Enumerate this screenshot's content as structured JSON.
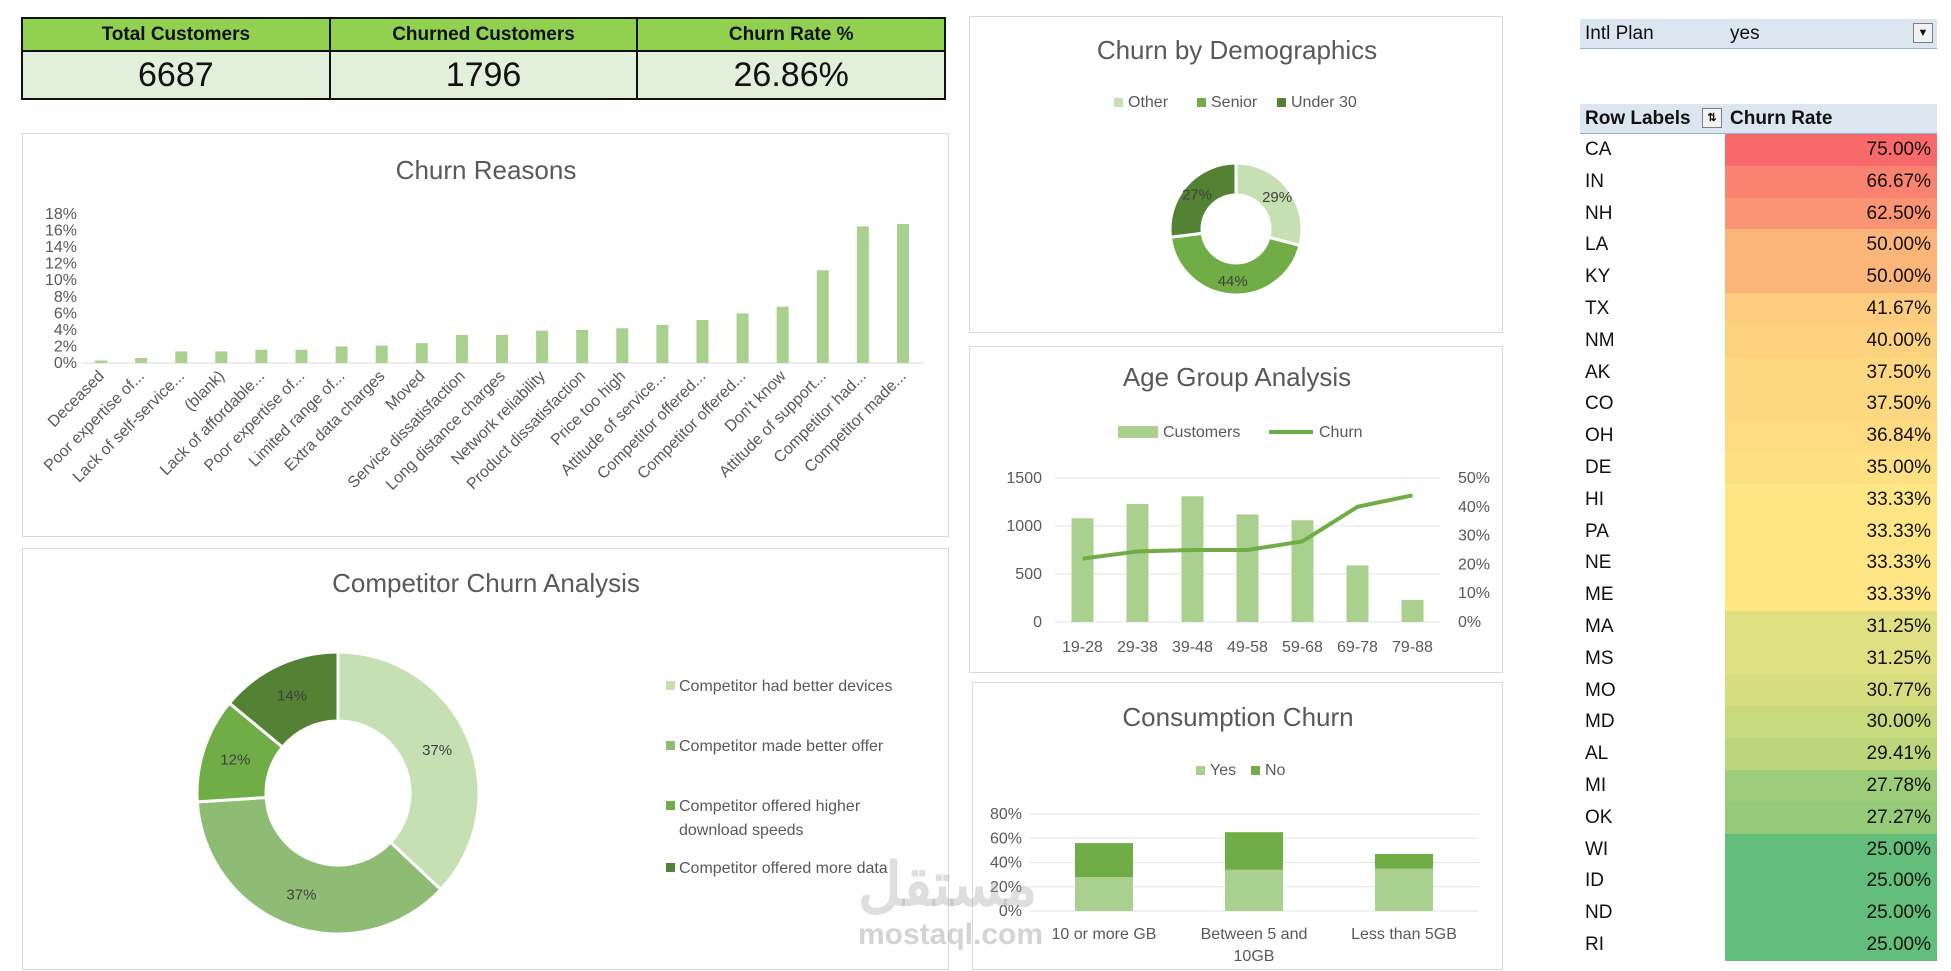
{
  "kpis": [
    {
      "label": "Total Customers",
      "value": "6687"
    },
    {
      "label": "Churned Customers",
      "value": "1796"
    },
    {
      "label": "Churn Rate %",
      "value": "26.86%"
    }
  ],
  "colors": {
    "light_green": "#a9d08e",
    "green": "#70ad47",
    "dark_green": "#548235",
    "pale_green": "#c6e0b4",
    "kpi_head": "#92d050",
    "kpi_body": "#e2efda"
  },
  "chart_data": [
    {
      "type": "bar",
      "title": "Churn Reasons",
      "categories": [
        "Deceased",
        "Poor expertise of...",
        "Lack of self-service...",
        "(blank)",
        "Lack of affordable...",
        "Poor expertise of...",
        "Limited range of...",
        "Extra data charges",
        "Moved",
        "Service dissatisfaction",
        "Long distance charges",
        "Network reliability",
        "Product dissatisfaction",
        "Price too high",
        "Attitude of service...",
        "Competitor offered...",
        "Competitor offered...",
        "Don't know",
        "Attitude of support...",
        "Competitor had...",
        "Competitor made..."
      ],
      "values": [
        0.3,
        0.6,
        1.4,
        1.4,
        1.6,
        1.6,
        2.0,
        2.1,
        2.4,
        3.4,
        3.4,
        3.9,
        4.0,
        4.2,
        4.6,
        5.2,
        6.0,
        6.8,
        11.2,
        16.5,
        16.8
      ],
      "y_ticks": [
        "0%",
        "2%",
        "4%",
        "6%",
        "8%",
        "10%",
        "12%",
        "14%",
        "16%",
        "18%"
      ],
      "ylim": [
        0,
        18
      ]
    },
    {
      "type": "pie",
      "title": "Competitor Churn Analysis",
      "labels": [
        "Competitor had better devices",
        "Competitor made better offer",
        "Competitor offered higher download speeds",
        "Competitor offered more data"
      ],
      "values": [
        37,
        37,
        12,
        14
      ],
      "data_labels": [
        "37%",
        "37%",
        "12%",
        "14%"
      ]
    },
    {
      "type": "pie",
      "title": "Churn by Demographics",
      "labels": [
        "Other",
        "Senior",
        "Under 30"
      ],
      "values": [
        29,
        44,
        27
      ],
      "data_labels": [
        "29%",
        "44%",
        "27%"
      ]
    },
    {
      "type": "bar",
      "title": "Age Group Analysis",
      "categories": [
        "19-28",
        "29-38",
        "39-48",
        "49-58",
        "59-68",
        "69-78",
        "79-88"
      ],
      "series": [
        {
          "name": "Customers",
          "type": "bar",
          "axis": "left",
          "values": [
            1080,
            1230,
            1310,
            1120,
            1060,
            590,
            230
          ]
        },
        {
          "name": "Churn",
          "type": "line",
          "axis": "right",
          "values": [
            22,
            24.5,
            25,
            25,
            28,
            40,
            44
          ]
        }
      ],
      "y_ticks": [
        "0",
        "500",
        "1000",
        "1500"
      ],
      "y2_ticks": [
        "0%",
        "10%",
        "20%",
        "30%",
        "40%",
        "50%"
      ],
      "ylim": [
        0,
        1500
      ],
      "y2lim": [
        0,
        50
      ]
    },
    {
      "type": "bar",
      "title": "Consumption Churn",
      "categories": [
        "10 or more GB",
        "Between 5 and 10GB",
        "Less than 5GB"
      ],
      "series": [
        {
          "name": "Yes",
          "values": [
            28,
            34,
            35
          ]
        },
        {
          "name": "No",
          "values": [
            28,
            31,
            12
          ]
        }
      ],
      "y_ticks": [
        "0%",
        "20%",
        "40%",
        "60%",
        "80%"
      ],
      "ylim": [
        0,
        80
      ]
    }
  ],
  "pivot": {
    "filter_label": "Intl Plan",
    "filter_value": "yes",
    "row_header": "Row Labels",
    "value_header": "Churn Rate",
    "rows": [
      {
        "state": "CA",
        "rate": "75.00%",
        "color": "#f8696b"
      },
      {
        "state": "IN",
        "rate": "66.67%",
        "color": "#f98370"
      },
      {
        "state": "NH",
        "rate": "62.50%",
        "color": "#fa9473"
      },
      {
        "state": "LA",
        "rate": "50.00%",
        "color": "#fcb579"
      },
      {
        "state": "KY",
        "rate": "50.00%",
        "color": "#fcb579"
      },
      {
        "state": "TX",
        "rate": "41.67%",
        "color": "#fdcc7e"
      },
      {
        "state": "NM",
        "rate": "40.00%",
        "color": "#fed17f"
      },
      {
        "state": "AK",
        "rate": "37.50%",
        "color": "#fed880"
      },
      {
        "state": "CO",
        "rate": "37.50%",
        "color": "#fed880"
      },
      {
        "state": "OH",
        "rate": "36.84%",
        "color": "#feda81"
      },
      {
        "state": "DE",
        "rate": "35.00%",
        "color": "#fee082"
      },
      {
        "state": "HI",
        "rate": "33.33%",
        "color": "#ffe583"
      },
      {
        "state": "PA",
        "rate": "33.33%",
        "color": "#ffe583"
      },
      {
        "state": "NE",
        "rate": "33.33%",
        "color": "#ffe583"
      },
      {
        "state": "ME",
        "rate": "33.33%",
        "color": "#ffe583"
      },
      {
        "state": "MA",
        "rate": "31.25%",
        "color": "#dfe081"
      },
      {
        "state": "MS",
        "rate": "31.25%",
        "color": "#dfe081"
      },
      {
        "state": "MO",
        "rate": "30.77%",
        "color": "#d6dd7f"
      },
      {
        "state": "MD",
        "rate": "30.00%",
        "color": "#c8d97e"
      },
      {
        "state": "AL",
        "rate": "29.41%",
        "color": "#bdd67c"
      },
      {
        "state": "MI",
        "rate": "27.78%",
        "color": "#9ecd79"
      },
      {
        "state": "OK",
        "rate": "27.27%",
        "color": "#94ca78"
      },
      {
        "state": "WI",
        "rate": "25.00%",
        "color": "#63be7b"
      },
      {
        "state": "ID",
        "rate": "25.00%",
        "color": "#63be7b"
      },
      {
        "state": "ND",
        "rate": "25.00%",
        "color": "#63be7b"
      },
      {
        "state": "RI",
        "rate": "25.00%",
        "color": "#63be7b"
      }
    ]
  },
  "watermark": {
    "logo": "مستقل",
    "site": "mostaql.com"
  }
}
